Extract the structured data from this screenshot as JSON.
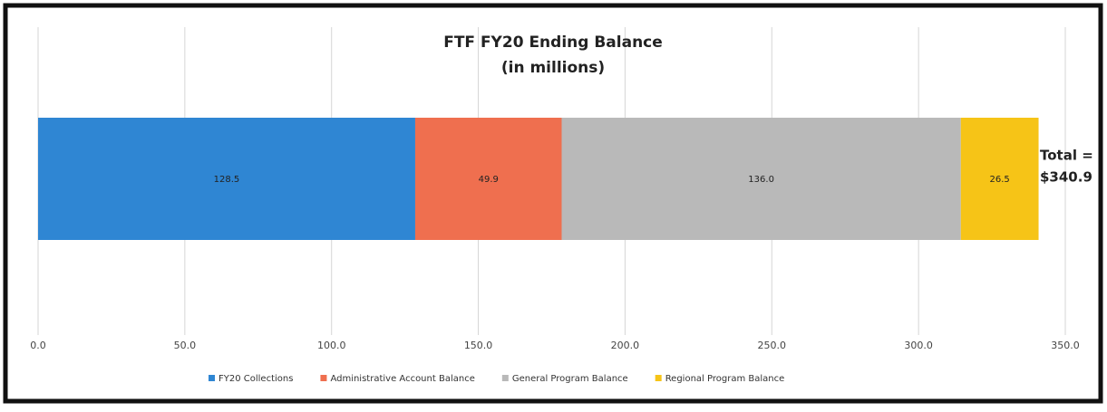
{
  "chart_data": {
    "type": "stacked_bar_horizontal",
    "title": [
      "FTF FY20 Ending Balance",
      "(in millions)"
    ],
    "annotation": [
      "Total =",
      "$340.9"
    ],
    "series": [
      {
        "name": "FY20 Collections",
        "color": "#2f86d3",
        "values": [
          128.5
        ]
      },
      {
        "name": "Administrative Account Balance",
        "color": "#ef6f4f",
        "values": [
          49.9
        ]
      },
      {
        "name": "General Program Balance",
        "color": "#b9b9b9",
        "values": [
          136
        ],
        "value_labels": [
          "136.0"
        ]
      },
      {
        "name": "Regional Program Balance",
        "color": "#f6c417",
        "values": [
          26.5
        ]
      }
    ],
    "xlim": [
      0,
      350
    ],
    "xticks": [
      {
        "value": 0,
        "label": "0.0"
      },
      {
        "value": 50,
        "label": "50.0"
      },
      {
        "value": 100,
        "label": "100.0"
      },
      {
        "value": 150,
        "label": "150.0"
      },
      {
        "value": 200,
        "label": "200.0"
      },
      {
        "value": 250,
        "label": "250.0"
      },
      {
        "value": 300,
        "label": "300.0"
      },
      {
        "value": 350,
        "label": "350.0"
      }
    ],
    "grid": true,
    "legend": "bottom"
  }
}
